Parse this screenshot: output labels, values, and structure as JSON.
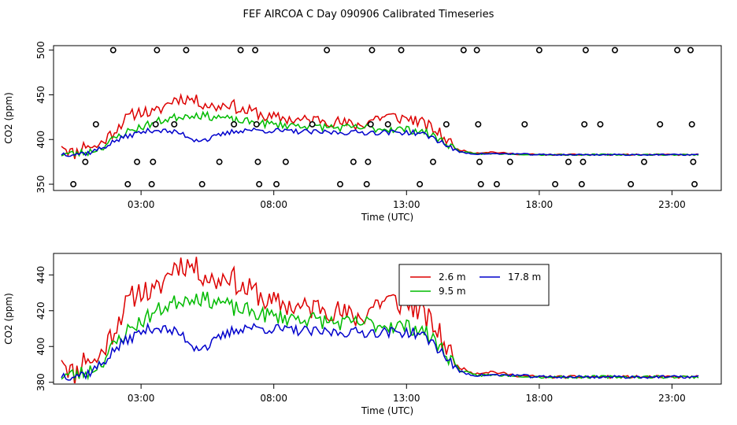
{
  "title": "FEF AIRCOA C  Day 090906  Calibrated Timeseries",
  "colors": {
    "red": "#dd0000",
    "green": "#00bb00",
    "blue": "#0000cc",
    "axis": "#000000"
  },
  "chart_data": [
    {
      "type": "scatter+line",
      "xlabel": "Time (UTC)",
      "ylabel": "CO2 (ppm)",
      "xlim": [
        0,
        24.5
      ],
      "ylim": [
        343,
        505
      ],
      "x_ticks": [
        3,
        8,
        13,
        18,
        23
      ],
      "x_tick_labels": [
        "03:00",
        "08:00",
        "13:00",
        "18:00",
        "23:00"
      ],
      "y_ticks": [
        350,
        400,
        450,
        500
      ],
      "y_tick_labels": [
        "350",
        "400",
        "450",
        "500"
      ],
      "points": [
        [
          0.45,
          350
        ],
        [
          0.9,
          375
        ],
        [
          1.3,
          417
        ],
        [
          1.95,
          500
        ],
        [
          2.5,
          350
        ],
        [
          2.85,
          375
        ],
        [
          3.4,
          350
        ],
        [
          3.45,
          375
        ],
        [
          3.55,
          417
        ],
        [
          3.6,
          500
        ],
        [
          4.25,
          417
        ],
        [
          4.7,
          500
        ],
        [
          5.3,
          350
        ],
        [
          5.95,
          375
        ],
        [
          6.5,
          417
        ],
        [
          6.75,
          500
        ],
        [
          7.3,
          500
        ],
        [
          7.35,
          417
        ],
        [
          7.4,
          375
        ],
        [
          7.45,
          350
        ],
        [
          8.1,
          350
        ],
        [
          8.45,
          375
        ],
        [
          9.45,
          417
        ],
        [
          10.0,
          500
        ],
        [
          10.5,
          350
        ],
        [
          11.0,
          375
        ],
        [
          11.5,
          350
        ],
        [
          11.55,
          375
        ],
        [
          11.65,
          417
        ],
        [
          11.7,
          500
        ],
        [
          12.3,
          417
        ],
        [
          12.8,
          500
        ],
        [
          13.5,
          350
        ],
        [
          14.0,
          375
        ],
        [
          14.5,
          417
        ],
        [
          15.15,
          500
        ],
        [
          15.65,
          500
        ],
        [
          15.7,
          417
        ],
        [
          15.75,
          375
        ],
        [
          15.8,
          350
        ],
        [
          16.4,
          350
        ],
        [
          16.9,
          375
        ],
        [
          17.45,
          417
        ],
        [
          18.0,
          500
        ],
        [
          18.6,
          350
        ],
        [
          19.1,
          375
        ],
        [
          19.6,
          350
        ],
        [
          19.65,
          375
        ],
        [
          19.7,
          417
        ],
        [
          19.75,
          500
        ],
        [
          20.3,
          417
        ],
        [
          20.85,
          500
        ],
        [
          21.45,
          350
        ],
        [
          21.95,
          375
        ],
        [
          22.55,
          417
        ],
        [
          23.2,
          500
        ],
        [
          23.7,
          500
        ],
        [
          23.75,
          417
        ],
        [
          23.8,
          375
        ],
        [
          23.85,
          350
        ]
      ]
    },
    {
      "type": "line",
      "xlabel": "Time (UTC)",
      "ylabel": "CO2 (ppm)",
      "xlim": [
        0,
        24.5
      ],
      "ylim": [
        379,
        452
      ],
      "x_ticks": [
        3,
        8,
        13,
        18,
        23
      ],
      "x_tick_labels": [
        "03:00",
        "08:00",
        "13:00",
        "18:00",
        "23:00"
      ],
      "y_ticks": [
        380,
        400,
        420,
        440
      ],
      "y_tick_labels": [
        "380",
        "400",
        "420",
        "440"
      ],
      "legend_position": "top-right",
      "series_keypoints": [
        {
          "name": "2.6 m",
          "color": "red",
          "keypoints": [
            [
              0,
              396
            ],
            [
              0.3,
              387
            ],
            [
              0.5,
              384
            ],
            [
              0.8,
              392
            ],
            [
              1.0,
              395
            ],
            [
              1.2,
              390
            ],
            [
              1.5,
              396
            ],
            [
              2.0,
              410
            ],
            [
              2.3,
              420
            ],
            [
              2.7,
              428
            ],
            [
              3.0,
              432
            ],
            [
              3.5,
              429
            ],
            [
              4.0,
              440
            ],
            [
              4.3,
              446
            ],
            [
              4.8,
              446
            ],
            [
              5.3,
              441
            ],
            [
              5.8,
              436
            ],
            [
              6.3,
              441
            ],
            [
              6.8,
              432
            ],
            [
              7.3,
              431
            ],
            [
              7.8,
              424
            ],
            [
              8.3,
              424
            ],
            [
              8.8,
              422
            ],
            [
              9.3,
              421
            ],
            [
              9.8,
              423
            ],
            [
              10.3,
              420
            ],
            [
              10.8,
              417
            ],
            [
              11.3,
              416
            ],
            [
              11.8,
              424
            ],
            [
              12.3,
              426
            ],
            [
              12.8,
              424
            ],
            [
              13.2,
              423
            ],
            [
              13.6,
              418
            ],
            [
              14.0,
              412
            ],
            [
              14.3,
              405
            ],
            [
              14.6,
              398
            ],
            [
              14.8,
              390
            ],
            [
              15.2,
              387
            ],
            [
              15.6,
              385
            ],
            [
              16.2,
              386
            ],
            [
              17.0,
              384
            ],
            [
              18.0,
              383
            ],
            [
              19.0,
              383
            ],
            [
              20.0,
              383
            ],
            [
              21.0,
              383
            ],
            [
              22.0,
              383
            ],
            [
              23.0,
              383
            ],
            [
              24.0,
              383
            ]
          ]
        },
        {
          "name": "9.5 m",
          "color": "green",
          "keypoints": [
            [
              0,
              384
            ],
            [
              0.5,
              384
            ],
            [
              1.0,
              386
            ],
            [
              1.5,
              391
            ],
            [
              2.0,
              401
            ],
            [
              2.5,
              409
            ],
            [
              3.0,
              414
            ],
            [
              3.5,
              419
            ],
            [
              4.0,
              423
            ],
            [
              4.5,
              426
            ],
            [
              5.0,
              428
            ],
            [
              5.5,
              426
            ],
            [
              6.0,
              425
            ],
            [
              6.5,
              421
            ],
            [
              7.0,
              420
            ],
            [
              7.5,
              418
            ],
            [
              8.0,
              417
            ],
            [
              8.5,
              416
            ],
            [
              9.0,
              416
            ],
            [
              9.5,
              415
            ],
            [
              10.0,
              414
            ],
            [
              10.5,
              413
            ],
            [
              11.0,
              413
            ],
            [
              11.5,
              413
            ],
            [
              12.0,
              412
            ],
            [
              12.5,
              412
            ],
            [
              13.0,
              411
            ],
            [
              13.5,
              410
            ],
            [
              14.0,
              404
            ],
            [
              14.5,
              396
            ],
            [
              15.0,
              387
            ],
            [
              15.5,
              384
            ],
            [
              16.0,
              384
            ],
            [
              17.0,
              384
            ],
            [
              18.0,
              383
            ],
            [
              19.0,
              383
            ],
            [
              20.0,
              383
            ],
            [
              21.0,
              383
            ],
            [
              22.0,
              383
            ],
            [
              23.0,
              383
            ],
            [
              24.0,
              383
            ]
          ]
        },
        {
          "name": "17.8 m",
          "color": "blue",
          "keypoints": [
            [
              0,
              384
            ],
            [
              0.5,
              384
            ],
            [
              1.0,
              385
            ],
            [
              1.5,
              390
            ],
            [
              2.0,
              398
            ],
            [
              2.5,
              404
            ],
            [
              3.0,
              408
            ],
            [
              3.5,
              411
            ],
            [
              4.0,
              409
            ],
            [
              4.5,
              407
            ],
            [
              5.0,
              400
            ],
            [
              5.5,
              400
            ],
            [
              6.0,
              405
            ],
            [
              6.5,
              409
            ],
            [
              7.0,
              411
            ],
            [
              7.5,
              410
            ],
            [
              8.0,
              410
            ],
            [
              8.5,
              409
            ],
            [
              9.0,
              409
            ],
            [
              9.5,
              408
            ],
            [
              10.0,
              408
            ],
            [
              10.5,
              408
            ],
            [
              11.0,
              408
            ],
            [
              11.5,
              408
            ],
            [
              12.0,
              408
            ],
            [
              12.5,
              408
            ],
            [
              13.0,
              408
            ],
            [
              13.5,
              407
            ],
            [
              14.0,
              402
            ],
            [
              14.5,
              394
            ],
            [
              15.0,
              386
            ],
            [
              15.5,
              384
            ],
            [
              16.0,
              384
            ],
            [
              17.0,
              384
            ],
            [
              18.0,
              383
            ],
            [
              19.0,
              383
            ],
            [
              20.0,
              383
            ],
            [
              21.0,
              383
            ],
            [
              22.0,
              383
            ],
            [
              23.0,
              383
            ],
            [
              24.0,
              383
            ]
          ]
        }
      ]
    }
  ]
}
